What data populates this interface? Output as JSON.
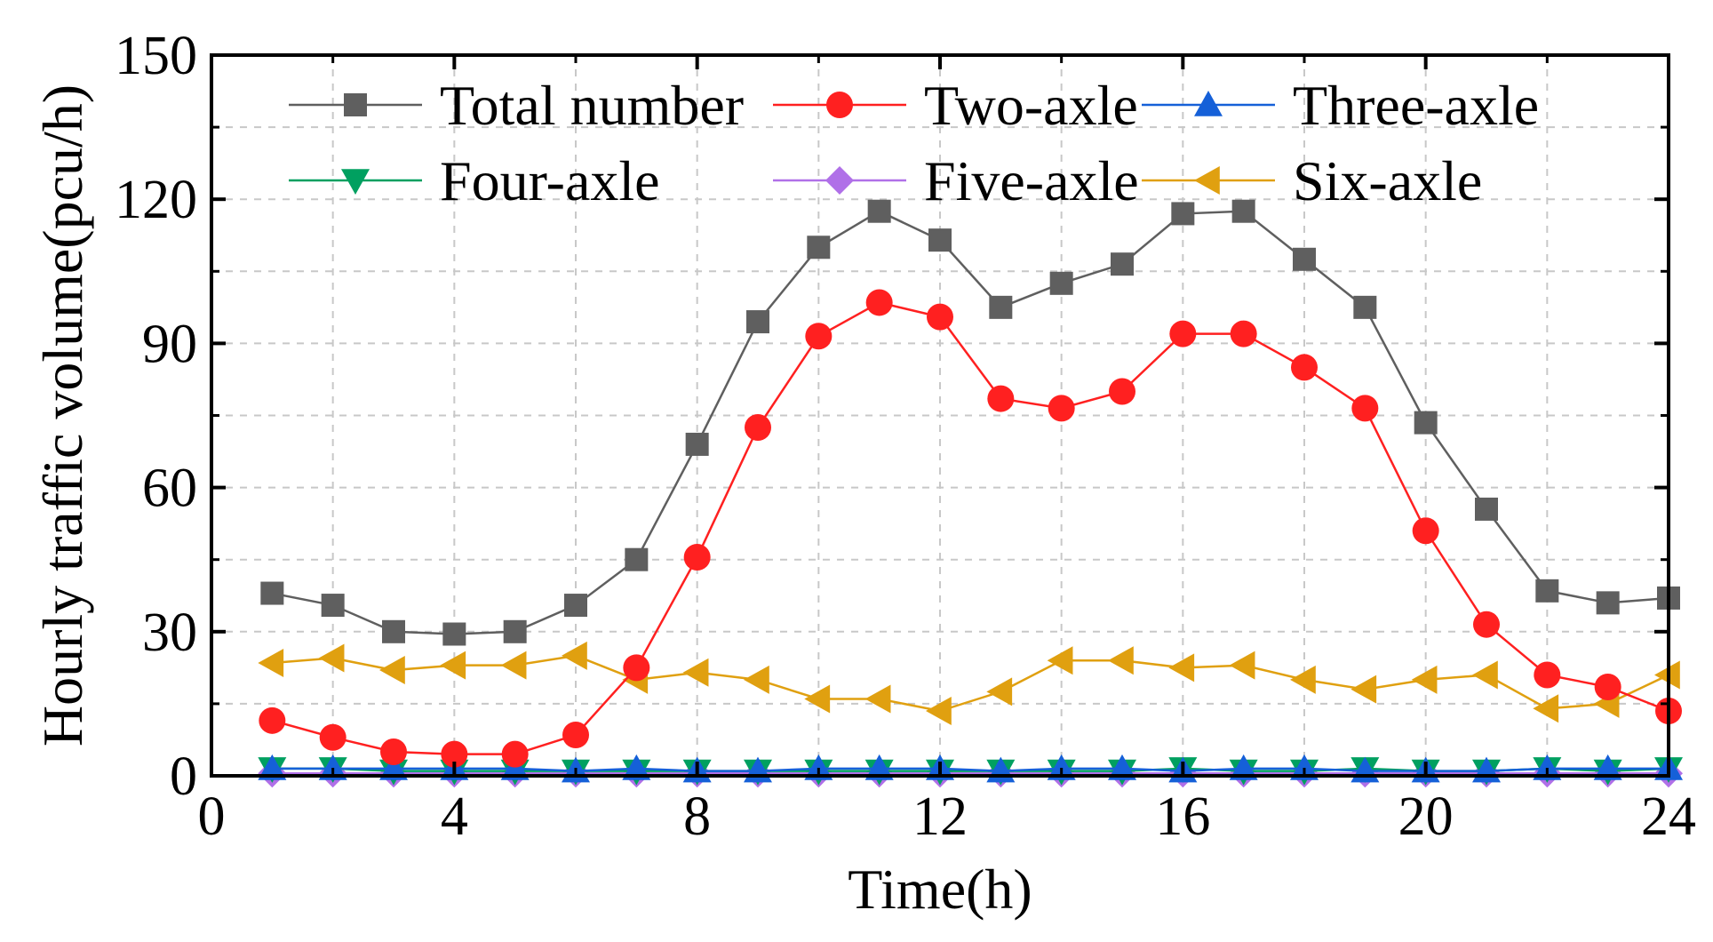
{
  "chart_data": {
    "type": "line",
    "title": "",
    "xlabel": "Time(h)",
    "ylabel": "Hourly traffic volume(pcu/h)",
    "xlim": [
      0,
      24
    ],
    "ylim": [
      0,
      150
    ],
    "xticks": [
      0,
      4,
      8,
      12,
      16,
      20,
      24
    ],
    "yticks": [
      0,
      30,
      60,
      90,
      120,
      150
    ],
    "xtick_labels": [
      "0",
      "4",
      "8",
      "12",
      "16",
      "20",
      "24"
    ],
    "ytick_labels": [
      "0",
      "30",
      "60",
      "90",
      "120",
      "150"
    ],
    "minor_x_step": 2,
    "minor_y_step": 15,
    "grid": true,
    "legend_position": "top",
    "x": [
      1,
      2,
      3,
      4,
      5,
      6,
      7,
      8,
      9,
      10,
      11,
      12,
      13,
      14,
      15,
      16,
      17,
      18,
      19,
      20,
      21,
      22,
      23,
      24
    ],
    "series": [
      {
        "name": "Total number",
        "color": "#5f5f5f",
        "marker": "square",
        "values": [
          38,
          35.5,
          30,
          29.5,
          30,
          35.5,
          45,
          69,
          94.5,
          110,
          117.5,
          111.5,
          97.5,
          102.5,
          106.5,
          117,
          117.5,
          107.5,
          97.5,
          73.5,
          55.5,
          38.5,
          36,
          37
        ]
      },
      {
        "name": "Two-axle",
        "color": "#ff2020",
        "marker": "circle",
        "values": [
          11.5,
          8,
          5,
          4.5,
          4.5,
          8.5,
          22.5,
          45.5,
          72.5,
          91.5,
          98.5,
          95.5,
          78.5,
          76.5,
          80,
          92,
          92,
          85,
          76.5,
          51,
          31.5,
          21,
          18.5,
          13.5
        ]
      },
      {
        "name": "Three-axle",
        "color": "#1560d8",
        "marker": "triangle-up",
        "values": [
          1.5,
          1.5,
          1.5,
          1.5,
          1.5,
          1,
          1.5,
          1,
          1,
          1.5,
          1.5,
          1.5,
          1,
          1.5,
          1.5,
          1,
          1.5,
          1.5,
          1,
          1,
          1,
          1.5,
          1.5,
          1.5
        ]
      },
      {
        "name": "Four-axle",
        "color": "#00a060",
        "marker": "triangle-down",
        "values": [
          1.5,
          1.5,
          1,
          1,
          1,
          1,
          1,
          1,
          1,
          1,
          1,
          1,
          1,
          1,
          1,
          1.5,
          1,
          1,
          1.5,
          1,
          1,
          1.5,
          1,
          1.5
        ]
      },
      {
        "name": "Five-axle",
        "color": "#b070e8",
        "marker": "diamond",
        "values": [
          0.5,
          0.5,
          0.5,
          0.5,
          0.5,
          0.5,
          0.5,
          0.5,
          0.5,
          0.5,
          0.5,
          0.5,
          0.5,
          0.5,
          0.5,
          0.5,
          0.5,
          0.5,
          0.5,
          0.5,
          0.5,
          0.5,
          0.5,
          0.5
        ]
      },
      {
        "name": "Six-axle",
        "color": "#e0a010",
        "marker": "triangle-left",
        "values": [
          23.5,
          24.5,
          22,
          23,
          23,
          25,
          20,
          21.5,
          20,
          16,
          16,
          13.5,
          17.5,
          24,
          24,
          22.5,
          23,
          20,
          18,
          20,
          21,
          14,
          15,
          21
        ]
      }
    ]
  }
}
